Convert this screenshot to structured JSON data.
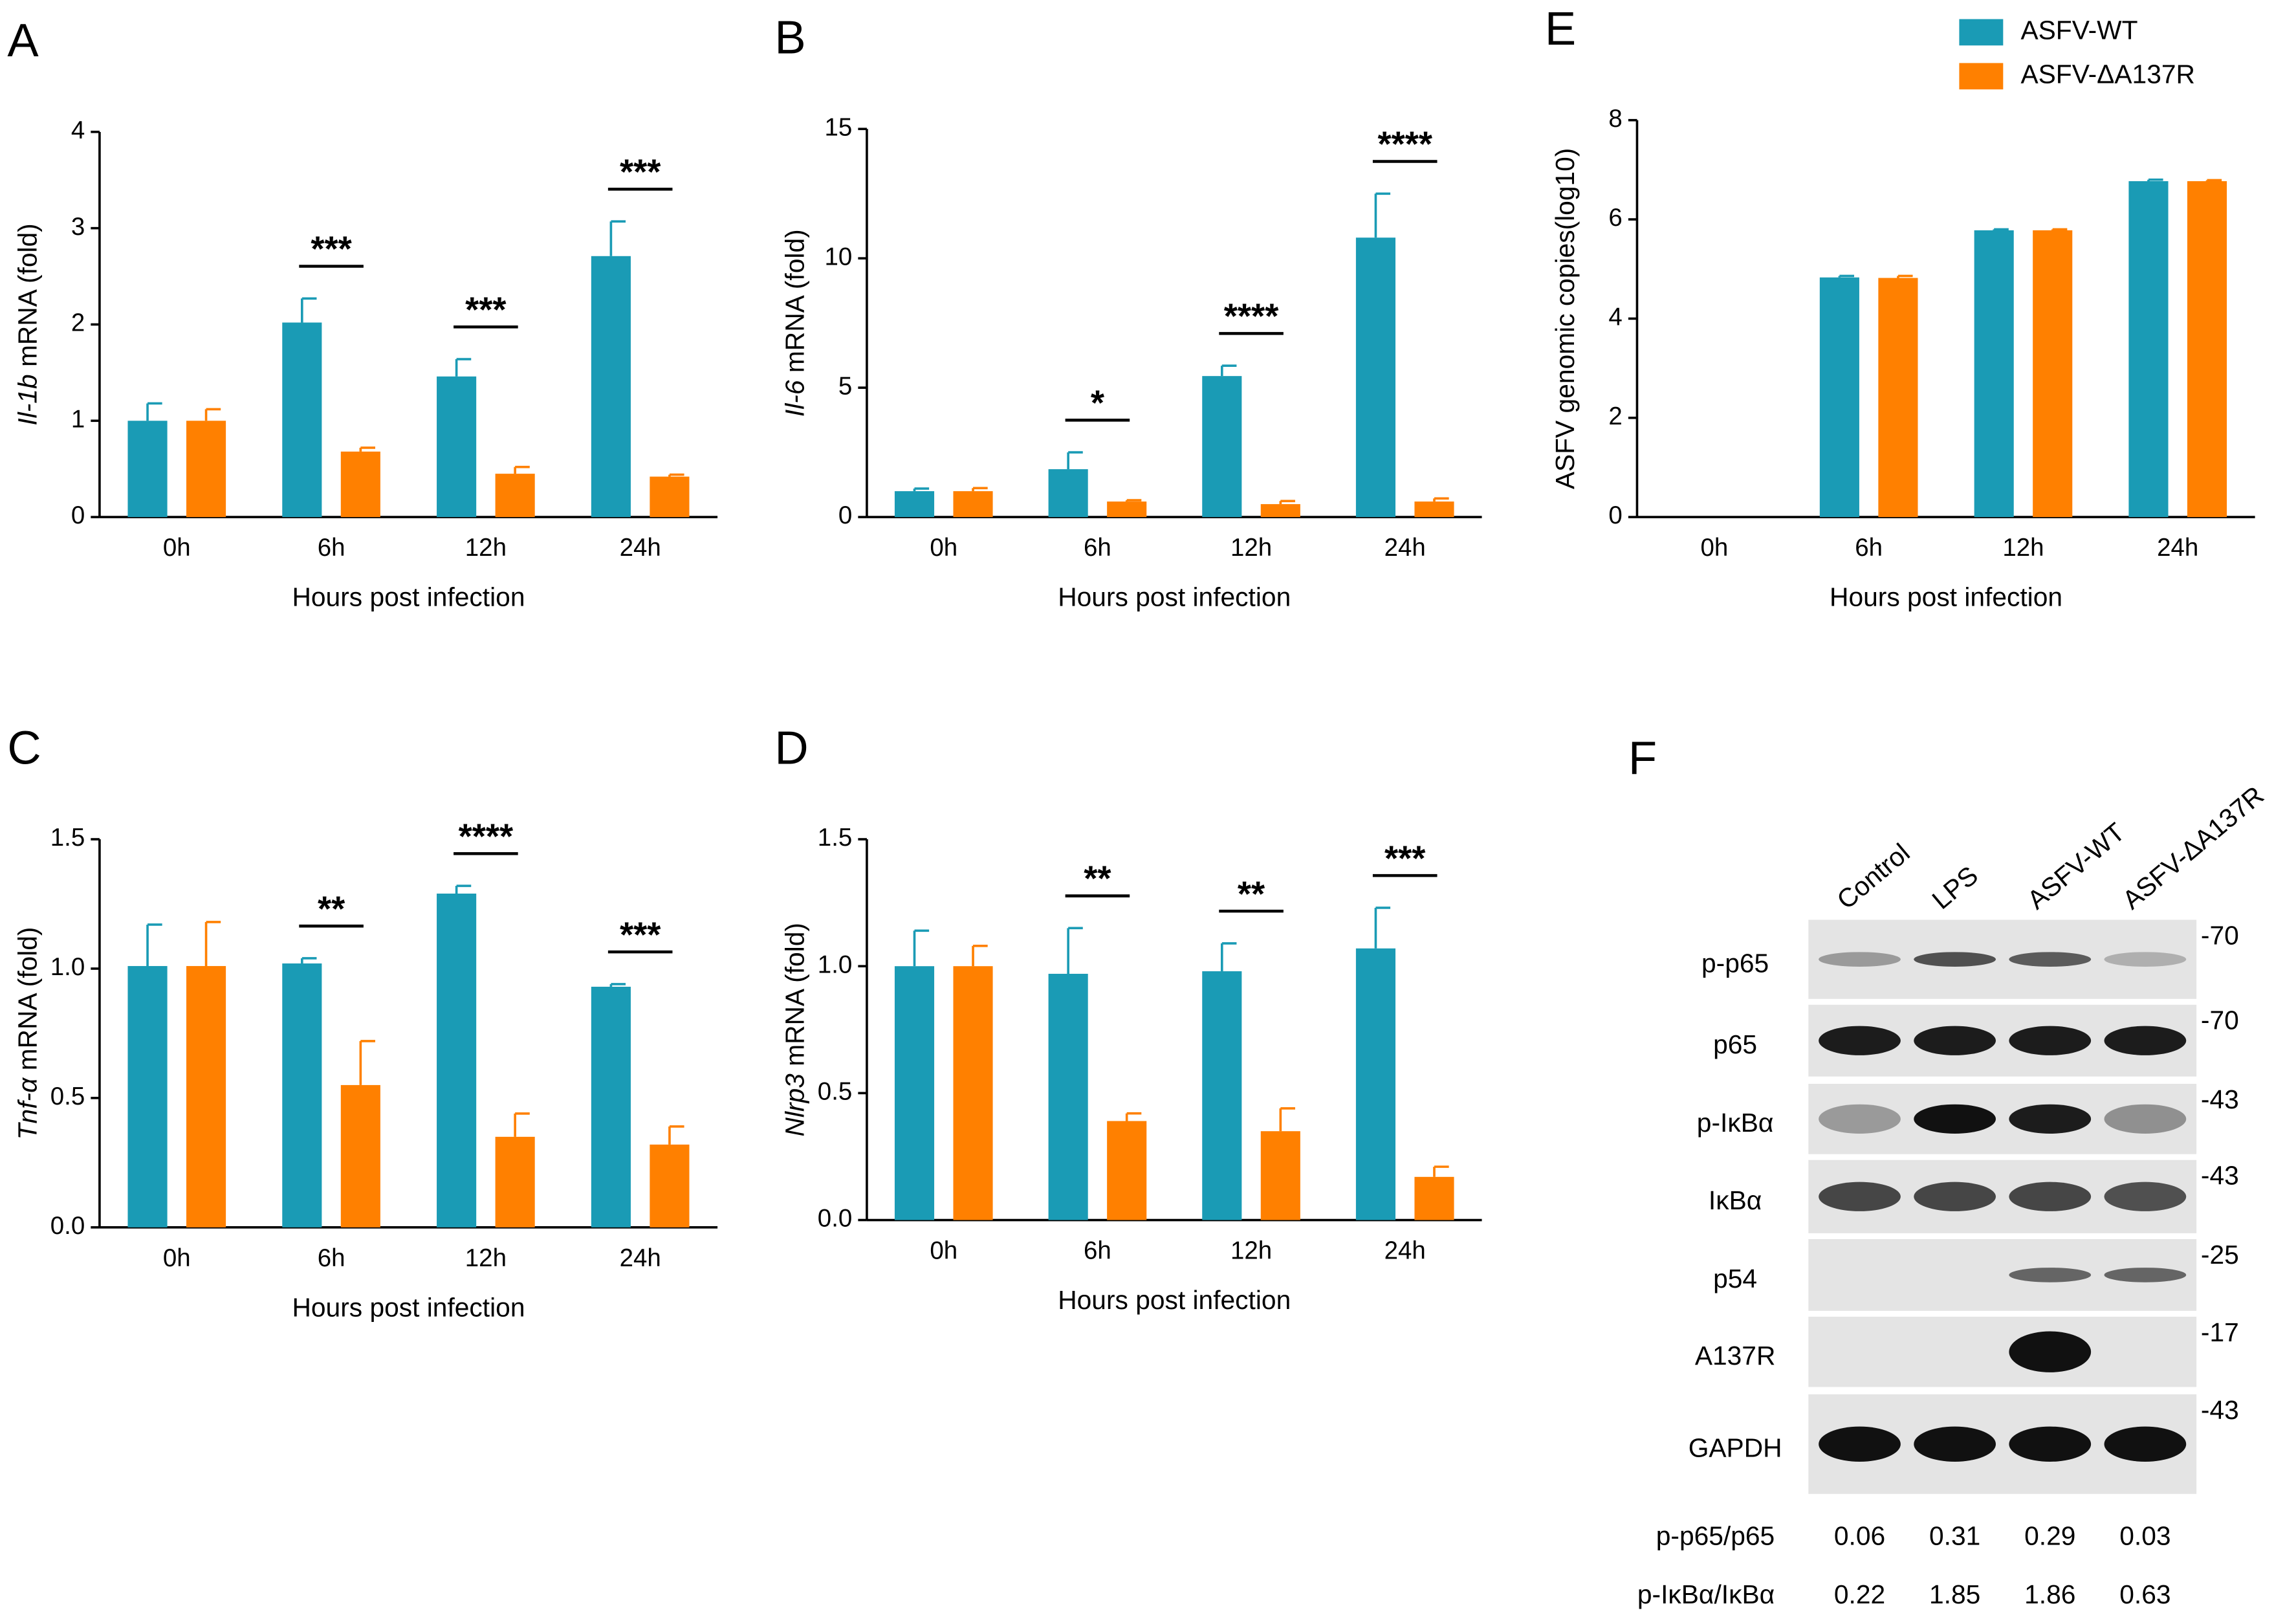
{
  "chart_data": [
    {
      "type": "bar",
      "panel": "A",
      "gene": "Il-1b",
      "ylabel": "mRNA (fold)",
      "xlabel": "Hours post infection",
      "categories": [
        "0h",
        "6h",
        "12h",
        "24h"
      ],
      "series": [
        {
          "color": "#1a9bb5",
          "values": [
            1.0,
            2.02,
            1.46,
            2.71
          ],
          "errors": [
            0.18,
            0.25,
            0.18,
            0.36
          ]
        },
        {
          "color": "#ff8000",
          "values": [
            1.0,
            0.68,
            0.45,
            0.42
          ],
          "errors": [
            0.12,
            0.04,
            0.07,
            0.02
          ]
        }
      ],
      "significance": [
        null,
        "***",
        "***",
        "***"
      ],
      "ylim": [
        0,
        4
      ],
      "yticks": [
        0,
        1,
        2,
        3,
        4
      ]
    },
    {
      "type": "bar",
      "panel": "B",
      "gene": "Il-6",
      "ylabel": "mRNA (fold)",
      "xlabel": "Hours post infection",
      "categories": [
        "0h",
        "6h",
        "12h",
        "24h"
      ],
      "series": [
        {
          "color": "#1a9bb5",
          "values": [
            1.0,
            1.85,
            5.45,
            10.8
          ],
          "errors": [
            0.1,
            0.65,
            0.4,
            1.7
          ]
        },
        {
          "color": "#ff8000",
          "values": [
            1.0,
            0.6,
            0.5,
            0.6
          ],
          "errors": [
            0.12,
            0.05,
            0.12,
            0.12
          ]
        }
      ],
      "significance": [
        null,
        "*",
        "****",
        "****"
      ],
      "ylim": [
        0,
        15
      ],
      "yticks": [
        0,
        5,
        10,
        15
      ]
    },
    {
      "type": "bar",
      "panel": "C",
      "gene": "Tnf-α",
      "ylabel": "mRNA (fold)",
      "xlabel": "Hours post infection",
      "categories": [
        "0h",
        "6h",
        "12h",
        "24h"
      ],
      "series": [
        {
          "color": "#1a9bb5",
          "values": [
            1.01,
            1.02,
            1.29,
            0.93
          ],
          "errors": [
            0.16,
            0.02,
            0.03,
            0.01
          ]
        },
        {
          "color": "#ff8000",
          "values": [
            1.01,
            0.55,
            0.35,
            0.32
          ],
          "errors": [
            0.17,
            0.17,
            0.09,
            0.07
          ]
        }
      ],
      "significance": [
        null,
        "**",
        "****",
        "***"
      ],
      "ylim": [
        0,
        1.5
      ],
      "yticks": [
        {
          "value": 0,
          "label": "0.0"
        },
        0.5,
        {
          "value": 1,
          "label": "1.0"
        },
        1.5
      ]
    },
    {
      "type": "bar",
      "panel": "D",
      "gene": "Nlrp3",
      "ylabel": "mRNA (fold)",
      "xlabel": "Hours post infection",
      "categories": [
        "0h",
        "6h",
        "12h",
        "24h"
      ],
      "series": [
        {
          "color": "#1a9bb5",
          "values": [
            1.0,
            0.97,
            0.98,
            1.07
          ],
          "errors": [
            0.14,
            0.18,
            0.11,
            0.16
          ]
        },
        {
          "color": "#ff8000",
          "values": [
            1.0,
            0.39,
            0.35,
            0.17
          ],
          "errors": [
            0.08,
            0.03,
            0.09,
            0.04
          ]
        }
      ],
      "significance": [
        null,
        "**",
        "**",
        "***"
      ],
      "ylim": [
        0,
        1.5
      ],
      "yticks": [
        {
          "value": 0,
          "label": "0.0"
        },
        0.5,
        {
          "value": 1,
          "label": "1.0"
        },
        1.5
      ]
    },
    {
      "type": "bar",
      "panel": "E",
      "ylabel": "ASFV genomic copies(log10)",
      "xlabel": "Hours post infection",
      "categories": [
        "0h",
        "6h",
        "12h",
        "24h"
      ],
      "series": [
        {
          "name": "ASFV-WT",
          "color": "#1a9bb5",
          "values": [
            0,
            4.83,
            5.78,
            6.77
          ],
          "errors": [
            null,
            0.03,
            0.02,
            0.03
          ]
        },
        {
          "name": "ASFV-ΔA137R",
          "color": "#ff8000",
          "values": [
            0,
            4.82,
            5.78,
            6.77
          ],
          "errors": [
            null,
            0.04,
            0.02,
            0.02
          ]
        }
      ],
      "ylim": [
        0,
        8
      ],
      "yticks": [
        0,
        2,
        4,
        6,
        8
      ]
    }
  ],
  "blot": {
    "panel": "F",
    "lanes": [
      "Control",
      "LPS",
      "ASFV-WT",
      "ASFV-ΔA137R"
    ],
    "rows": [
      {
        "label": "p-p65",
        "marker": "-70"
      },
      {
        "label": "p65",
        "marker": "-70"
      },
      {
        "label": "p-IκBα",
        "marker": "-43"
      },
      {
        "label": "IκBα",
        "marker": "-43"
      },
      {
        "label": "p54",
        "marker": "-25"
      },
      {
        "label": "A137R",
        "marker": "-17"
      },
      {
        "label": "GAPDH",
        "marker": "-43"
      }
    ],
    "ratios": [
      {
        "label": "p-p65/p65",
        "values": [
          0.06,
          0.31,
          0.29,
          0.03
        ]
      },
      {
        "label": "p-IκBα/IκBα",
        "values": [
          0.22,
          1.85,
          1.86,
          0.63
        ]
      }
    ]
  }
}
